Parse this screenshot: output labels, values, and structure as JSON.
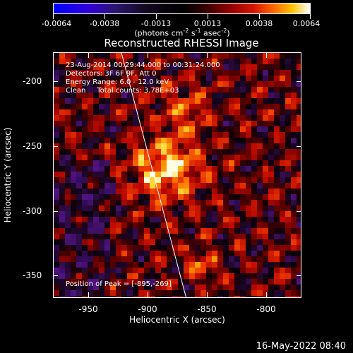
{
  "colorbar": {
    "tick_labels": [
      "-0.0064",
      "-0.0038",
      "-0.0013",
      "0.0013",
      "0.0038",
      "0.0064"
    ],
    "units_text": "(photons cm",
    "units_exp1": "-2",
    "units_mid1": " s",
    "units_exp2": "-1",
    "units_mid2": " asec",
    "units_exp3": "-2",
    "units_end": ")"
  },
  "plot": {
    "title": "Reconstructed RHESSI Image",
    "annotations": {
      "time_range": "23-Aug-2014 00:29:44.000 to 00:31:24.000",
      "detectors": "Detectors: 3F 6F 9F, Att 0",
      "energy_range": "Energy Range: 6.0 - 12.0 keV",
      "clean_counts": "Clean     Total counts: 3.78E+03",
      "peak_position": "Position of Peak = [-895,-269]"
    },
    "x_axis_label": "Heliocentric X (arcsec)",
    "y_axis_label": "Heliocentric Y (arcsec)",
    "x_tick_labels": [
      "-950",
      "-900",
      "-850",
      "-800"
    ],
    "y_tick_labels": [
      "-200",
      "-250",
      "-300",
      "-350"
    ]
  },
  "footer": {
    "timestamp": "16-May-2022 08:40"
  },
  "colors": {
    "background": "#000000",
    "foreground": "#ffffff",
    "colormap_low": "#0000ff",
    "colormap_mid": "#000000",
    "colormap_high": "#ffffff"
  }
}
